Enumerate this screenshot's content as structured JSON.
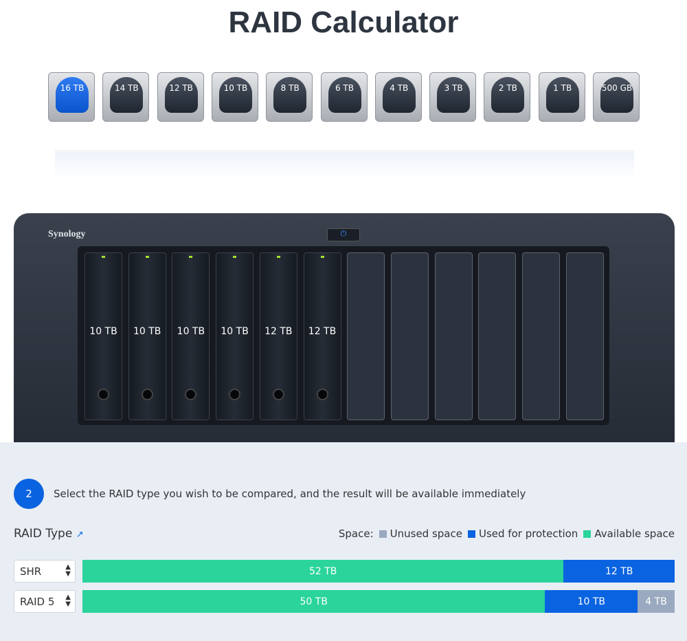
{
  "header": {
    "title": "RAID Calculator"
  },
  "drive_palette": [
    "16 TB",
    "14 TB",
    "12 TB",
    "10 TB",
    "8 TB",
    "6 TB",
    "4 TB",
    "3 TB",
    "2 TB",
    "1 TB",
    "500 GB"
  ],
  "device": {
    "brand": "Synology",
    "bays": [
      "10 TB",
      "10 TB",
      "10 TB",
      "10 TB",
      "12 TB",
      "12 TB"
    ]
  },
  "step": {
    "number": "2",
    "text": "Select the RAID type you wish to be compared, and the result will be available immediately"
  },
  "raid": {
    "label": "RAID Type",
    "space_label": "Space:",
    "legend": [
      {
        "name": "Unused space",
        "color": "#9aa9bf"
      },
      {
        "name": "Used for protection",
        "color": "#0a63e0"
      },
      {
        "name": "Available space",
        "color": "#2ad49b"
      }
    ],
    "rows": [
      {
        "type": "SHR",
        "values": [
          0,
          12,
          52
        ],
        "value_labels": [
          null,
          "12 TB",
          "52 TB"
        ]
      },
      {
        "type": "RAID 5",
        "values": [
          4,
          10,
          50
        ],
        "value_labels": [
          "4 TB",
          "10 TB",
          "50 TB"
        ]
      }
    ]
  }
}
